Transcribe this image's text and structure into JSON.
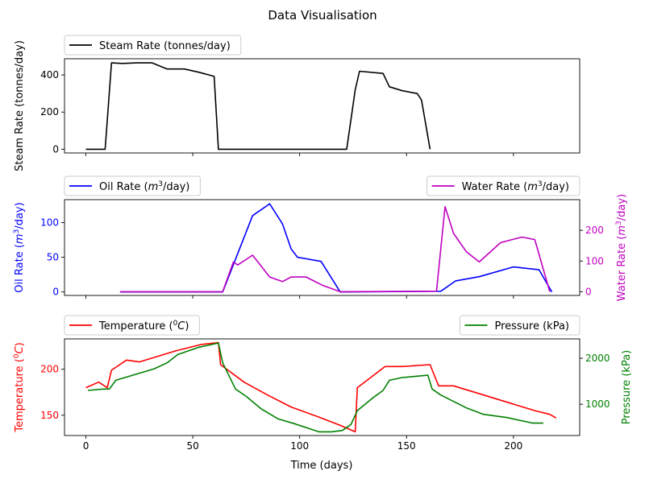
{
  "figure": {
    "title": "Data Visualisation",
    "xlabel": "Time (days)"
  },
  "chart_data": [
    {
      "type": "line",
      "xlim": [
        -10,
        231
      ],
      "x_ticks": [
        0,
        50,
        100,
        150,
        200
      ],
      "left_axis": {
        "label": "Steam Rate (tonnes/day)",
        "ylim": [
          -20,
          487
        ],
        "ticks": [
          0,
          200,
          400
        ],
        "color": "#000000"
      },
      "legend": {
        "position": "top-left",
        "entries": [
          "Steam Rate (tonnes/day)"
        ]
      },
      "series": [
        {
          "name": "Steam Rate (tonnes/day)",
          "axis": "left",
          "color": "#000000",
          "x": [
            0,
            9,
            12,
            17,
            24,
            31,
            38,
            46,
            53,
            60,
            62,
            122,
            126,
            128,
            139,
            142,
            148,
            155,
            157,
            161
          ],
          "y": [
            0,
            0,
            465,
            462,
            465,
            465,
            432,
            432,
            414,
            392,
            0,
            0,
            320,
            420,
            408,
            336,
            315,
            300,
            265,
            0
          ]
        }
      ]
    },
    {
      "type": "line",
      "xlim": [
        -10,
        231
      ],
      "x_ticks": [
        0,
        50,
        100,
        150,
        200
      ],
      "left_axis": {
        "label": "Oil Rate ($m^3$/day)",
        "ylim": [
          -5,
          133
        ],
        "ticks": [
          0,
          50,
          100
        ],
        "color": "#0000ff"
      },
      "right_axis": {
        "label": "Water Rate ($m^3$/day)",
        "ylim": [
          -12,
          300
        ],
        "ticks": [
          0,
          100,
          200
        ],
        "color": "#bf00bf"
      },
      "legends": [
        {
          "position": "top-left",
          "entries": [
            "Oil Rate ($m^3$/day)"
          ]
        },
        {
          "position": "top-right",
          "entries": [
            "Water Rate ($m^3$/day)"
          ]
        }
      ],
      "series": [
        {
          "name": "Oil Rate ($m^3$/day)",
          "axis": "left",
          "color": "#0000ff",
          "x": [
            16,
            64,
            78,
            86,
            92,
            96,
            99,
            110,
            119,
            166,
            173,
            184,
            200,
            212,
            218
          ],
          "y": [
            0,
            0,
            110,
            127,
            98,
            62,
            50,
            44,
            0,
            1,
            16,
            22,
            36,
            32,
            0
          ]
        },
        {
          "name": "Water Rate ($m^3$/day)",
          "axis": "right",
          "color": "#bf00bf",
          "x": [
            16,
            64,
            69,
            71,
            78,
            86,
            92,
            96,
            103,
            111,
            119,
            164,
            168,
            172,
            178,
            184,
            194,
            204,
            210,
            217
          ],
          "y": [
            0,
            0,
            97,
            87,
            119,
            48,
            33,
            48,
            48,
            20,
            0,
            2,
            277,
            190,
            130,
            97,
            160,
            178,
            170,
            0
          ]
        }
      ]
    },
    {
      "type": "line",
      "xlim": [
        -10,
        231
      ],
      "x_ticks": [
        0,
        50,
        100,
        150,
        200
      ],
      "left_axis": {
        "label": "Temperature ($^0C$)",
        "ylim": [
          128,
          233
        ],
        "ticks": [
          150,
          200
        ],
        "color": "#ff0000"
      },
      "right_axis": {
        "label": "Pressure (kPa)",
        "ylim": [
          320,
          2420
        ],
        "ticks": [
          1000,
          2000
        ],
        "color": "#008000"
      },
      "legends": [
        {
          "position": "top-left",
          "entries": [
            "Temperature ($^0C$)"
          ]
        },
        {
          "position": "top-right",
          "entries": [
            "Pressure (kPa)"
          ]
        }
      ],
      "series": [
        {
          "name": "Temperature ($^0C$)",
          "axis": "left",
          "color": "#ff0000",
          "x": [
            0,
            6,
            10,
            12,
            19,
            25,
            42,
            54,
            62,
            63,
            74,
            85,
            96,
            109,
            119,
            126,
            127,
            140,
            148,
            161,
            165,
            172,
            210,
            217,
            220
          ],
          "y": [
            180,
            186,
            180,
            199,
            210,
            208,
            220,
            227,
            229,
            205,
            186,
            172,
            159,
            148,
            139,
            132,
            180,
            203,
            203,
            205,
            182,
            182,
            155,
            151,
            147
          ]
        },
        {
          "name": "Pressure (kPa)",
          "axis": "right",
          "color": "#008000",
          "x": [
            1,
            8,
            11,
            14,
            32,
            38,
            43,
            53,
            62,
            64,
            70,
            75,
            82,
            90,
            98,
            109,
            115,
            120,
            124,
            127,
            134,
            139,
            142,
            148,
            160,
            162,
            166,
            178,
            186,
            197,
            209,
            214
          ],
          "y": [
            1300,
            1330,
            1330,
            1520,
            1770,
            1900,
            2080,
            2240,
            2330,
            1900,
            1330,
            1170,
            900,
            680,
            570,
            400,
            400,
            430,
            560,
            860,
            1130,
            1300,
            1520,
            1580,
            1630,
            1330,
            1200,
            920,
            780,
            710,
            590,
            590
          ]
        }
      ]
    }
  ]
}
